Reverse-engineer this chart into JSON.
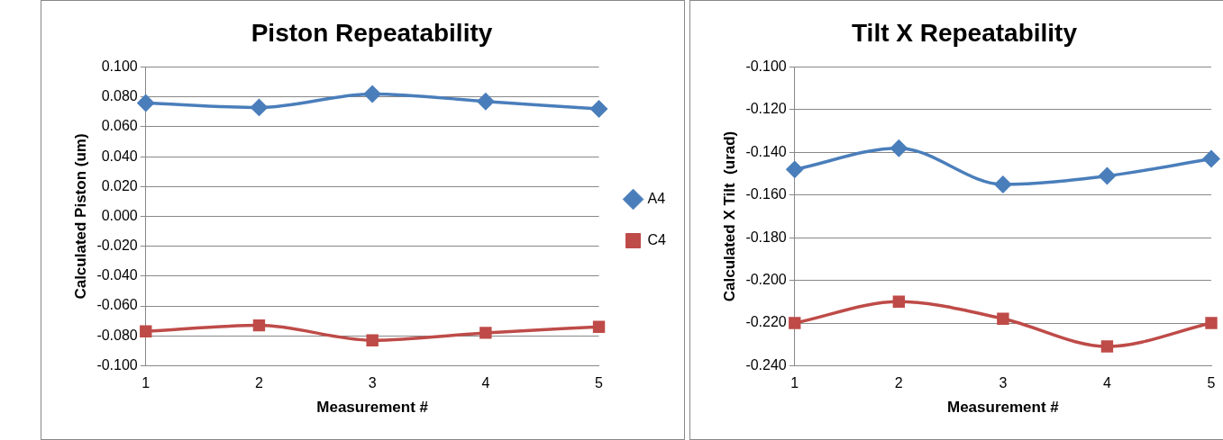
{
  "chart_data": [
    {
      "type": "line",
      "title": "Piston Repeatability",
      "xlabel": "Measurement #",
      "ylabel": "Calculated Piston (um)",
      "categories": [
        "1",
        "2",
        "3",
        "4",
        "5"
      ],
      "series": [
        {
          "name": "A4",
          "color": "#4a7ebb",
          "marker": "diamond",
          "values": [
            0.076,
            0.073,
            0.082,
            0.077,
            0.072
          ]
        },
        {
          "name": "C4",
          "color": "#be4b48",
          "marker": "square",
          "values": [
            -0.077,
            -0.073,
            -0.083,
            -0.078,
            -0.074
          ]
        }
      ],
      "ylim": [
        -0.1,
        0.1
      ],
      "yticks": [
        {
          "value": -0.1,
          "label": "-0.100"
        },
        {
          "value": -0.08,
          "label": "-0.080"
        },
        {
          "value": -0.06,
          "label": "-0.060"
        },
        {
          "value": -0.04,
          "label": "-0.040"
        },
        {
          "value": -0.02,
          "label": "-0.020"
        },
        {
          "value": 0,
          "label": "0.000"
        },
        {
          "value": 0.02,
          "label": "0.020"
        },
        {
          "value": 0.04,
          "label": "0.040"
        },
        {
          "value": 0.06,
          "label": "0.060"
        },
        {
          "value": 0.08,
          "label": "0.080"
        },
        {
          "value": 0.1,
          "label": "0.100"
        }
      ],
      "grid": "y",
      "legend": "right"
    },
    {
      "type": "line",
      "title": "Tilt X Repeatability",
      "xlabel": "Measurement #",
      "ylabel": "Calculated X Tilt  (urad)",
      "categories": [
        "1",
        "2",
        "3",
        "4",
        "5"
      ],
      "series": [
        {
          "color": "#4a7ebb",
          "marker": "diamond",
          "values": [
            -0.148,
            -0.138,
            -0.155,
            -0.151,
            -0.143
          ]
        },
        {
          "color": "#be4b48",
          "marker": "square",
          "values": [
            -0.22,
            -0.21,
            -0.218,
            -0.231,
            -0.22
          ]
        }
      ],
      "ylim": [
        -0.24,
        -0.1
      ],
      "yticks": [
        {
          "value": -0.24,
          "label": "-0.240"
        },
        {
          "value": -0.22,
          "label": "-0.220"
        },
        {
          "value": -0.2,
          "label": "-0.200"
        },
        {
          "value": -0.18,
          "label": "-0.180"
        },
        {
          "value": -0.16,
          "label": "-0.160"
        },
        {
          "value": -0.14,
          "label": "-0.140"
        },
        {
          "value": -0.12,
          "label": "-0.120"
        },
        {
          "value": -0.1,
          "label": "-0.100"
        }
      ],
      "grid": "y",
      "legend": false
    }
  ]
}
